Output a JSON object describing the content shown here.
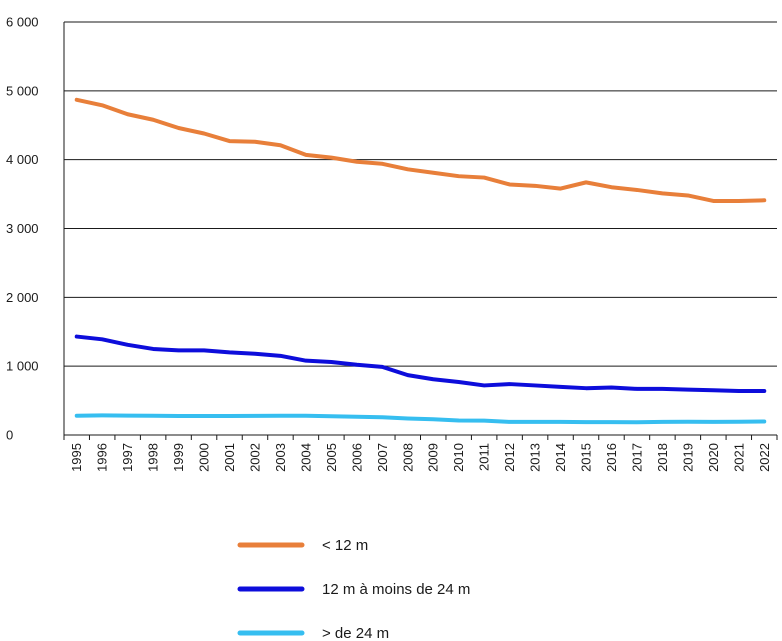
{
  "chart_data": {
    "type": "line",
    "title": "",
    "xlabel": "",
    "ylabel": "",
    "ylim": [
      0,
      6000
    ],
    "yticks": [
      0,
      1000,
      2000,
      3000,
      4000,
      5000,
      6000
    ],
    "ytick_labels": [
      "0",
      "1 000",
      "2 000",
      "3 000",
      "4 000",
      "5 000",
      "6 000"
    ],
    "grid": "horizontal",
    "legend": "bottom",
    "x": [
      "1995",
      "1996",
      "1997",
      "1998",
      "1999",
      "2000",
      "2001",
      "2002",
      "2003",
      "2004",
      "2005",
      "2006",
      "2007",
      "2008",
      "2009",
      "2010",
      "2011",
      "2012",
      "2013",
      "2014",
      "2015",
      "2016",
      "2017",
      "2018",
      "2019",
      "2020",
      "2021",
      "2022"
    ],
    "series": [
      {
        "name": "< 12 m",
        "color": "#e87f3a",
        "values": [
          4870,
          4790,
          4660,
          4580,
          4460,
          4380,
          4270,
          4260,
          4210,
          4070,
          4030,
          3970,
          3940,
          3860,
          3810,
          3760,
          3740,
          3640,
          3620,
          3580,
          3670,
          3600,
          3560,
          3510,
          3480,
          3400,
          3400,
          3410
        ]
      },
      {
        "name": "12 m à moins de 24 m",
        "color": "#0d0ddb",
        "values": [
          1430,
          1390,
          1310,
          1250,
          1230,
          1230,
          1200,
          1180,
          1150,
          1080,
          1060,
          1020,
          990,
          870,
          810,
          770,
          720,
          740,
          720,
          700,
          680,
          690,
          670,
          670,
          660,
          650,
          640,
          640
        ]
      },
      {
        "name": "> de 24 m",
        "color": "#36bef0",
        "values": [
          280,
          285,
          282,
          280,
          276,
          276,
          276,
          278,
          280,
          280,
          273,
          265,
          257,
          240,
          228,
          210,
          208,
          190,
          190,
          190,
          187,
          187,
          185,
          190,
          192,
          190,
          192,
          196
        ]
      }
    ]
  }
}
